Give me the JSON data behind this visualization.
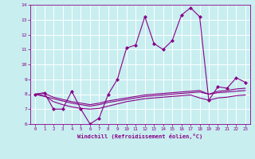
{
  "xlabel": "Windchill (Refroidissement éolien,°C)",
  "background_color": "#c8eef0",
  "grid_color": "#ffffff",
  "line_color": "#880088",
  "x_values": [
    0,
    1,
    2,
    3,
    4,
    5,
    6,
    7,
    8,
    9,
    10,
    11,
    12,
    13,
    14,
    15,
    16,
    17,
    18,
    19,
    20,
    21,
    22,
    23
  ],
  "series1": [
    8.0,
    8.1,
    7.0,
    7.0,
    8.2,
    7.0,
    6.0,
    6.4,
    8.0,
    9.0,
    11.1,
    11.3,
    13.2,
    11.4,
    11.0,
    11.6,
    13.3,
    13.8,
    13.2,
    7.6,
    8.5,
    8.4,
    9.1,
    8.8
  ],
  "series2": [
    8.0,
    7.85,
    7.7,
    7.55,
    7.4,
    7.3,
    7.2,
    7.3,
    7.45,
    7.55,
    7.65,
    7.75,
    7.85,
    7.9,
    7.95,
    8.0,
    8.05,
    8.1,
    8.15,
    8.0,
    8.1,
    8.15,
    8.2,
    8.25
  ],
  "series3": [
    8.0,
    7.9,
    7.5,
    7.3,
    7.15,
    7.05,
    7.0,
    7.05,
    7.2,
    7.35,
    7.5,
    7.6,
    7.7,
    7.75,
    7.8,
    7.85,
    7.9,
    7.95,
    7.75,
    7.6,
    7.75,
    7.8,
    7.9,
    7.95
  ],
  "series4": [
    8.0,
    8.05,
    7.8,
    7.65,
    7.5,
    7.4,
    7.3,
    7.4,
    7.55,
    7.65,
    7.75,
    7.85,
    7.95,
    8.0,
    8.05,
    8.1,
    8.15,
    8.2,
    8.25,
    8.0,
    8.2,
    8.25,
    8.35,
    8.4
  ],
  "ylim": [
    6,
    14
  ],
  "xlim": [
    -0.5,
    23.5
  ],
  "yticks": [
    6,
    7,
    8,
    9,
    10,
    11,
    12,
    13,
    14
  ],
  "xticks": [
    0,
    1,
    2,
    3,
    4,
    5,
    6,
    7,
    8,
    9,
    10,
    11,
    12,
    13,
    14,
    15,
    16,
    17,
    18,
    19,
    20,
    21,
    22,
    23
  ]
}
